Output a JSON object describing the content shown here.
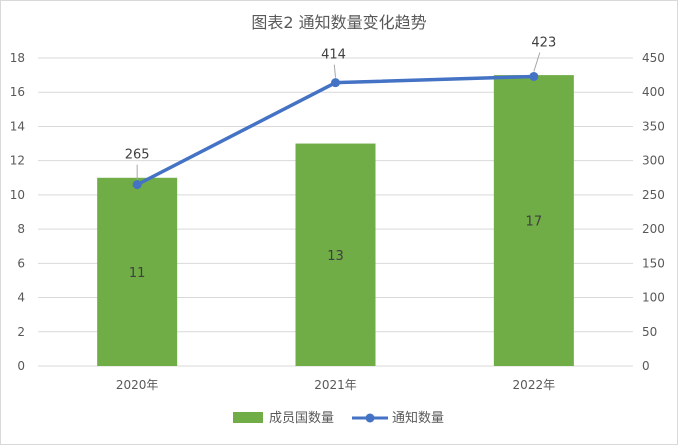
{
  "chart_data": {
    "type": "bar",
    "title": "图表2 通知数量变化趋势",
    "categories": [
      "2020年",
      "2021年",
      "2022年"
    ],
    "series": [
      {
        "name": "成员国数量",
        "type": "bar",
        "axis": "left",
        "values": [
          11,
          13,
          17
        ],
        "color": "#70ad47"
      },
      {
        "name": "通知数量",
        "type": "line",
        "axis": "right",
        "values": [
          265,
          414,
          423
        ],
        "color": "#4472c4"
      }
    ],
    "y_left": {
      "min": 0,
      "max": 18,
      "step": 2,
      "ticks": [
        "0",
        "2",
        "4",
        "6",
        "8",
        "10",
        "12",
        "14",
        "16",
        "18"
      ]
    },
    "y_right": {
      "min": 0,
      "max": 450,
      "step": 50,
      "ticks": [
        "0",
        "50",
        "100",
        "150",
        "200",
        "250",
        "300",
        "350",
        "400",
        "450"
      ]
    },
    "grid": true,
    "legend": "bottom",
    "bar_labels": [
      "11",
      "13",
      "17"
    ],
    "line_labels": [
      "265",
      "414",
      "423"
    ]
  }
}
